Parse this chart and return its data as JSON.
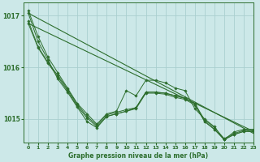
{
  "title": "Graphe pression niveau de la mer (hPa)",
  "bg_color": "#cce8e8",
  "grid_color": "#aacfcf",
  "line_color": "#2d6e2d",
  "xlim": [
    -0.5,
    23
  ],
  "ylim": [
    1014.55,
    1017.25
  ],
  "yticks": [
    1015,
    1016,
    1017
  ],
  "xticks": [
    0,
    1,
    2,
    3,
    4,
    5,
    6,
    7,
    8,
    9,
    10,
    11,
    12,
    13,
    14,
    15,
    16,
    17,
    18,
    19,
    20,
    21,
    22,
    23
  ],
  "series": [
    [
      1017.1,
      1016.6,
      1016.2,
      1015.9,
      1015.6,
      1015.3,
      1015.1,
      1014.9,
      1015.1,
      1015.15,
      1015.55,
      1015.45,
      1015.75,
      1015.75,
      1015.7,
      1015.6,
      1015.55,
      1015.2,
      1015.0,
      1014.85,
      1014.6,
      1014.75,
      1014.8,
      1014.8
    ],
    [
      1016.9,
      1016.4,
      1016.1,
      1015.85,
      1015.58,
      1015.28,
      1015.05,
      1014.88,
      1015.08,
      1015.13,
      1015.18,
      1015.22,
      1015.52,
      1015.52,
      1015.5,
      1015.45,
      1015.4,
      1015.3,
      1014.98,
      1014.83,
      1014.62,
      1014.72,
      1014.78,
      1014.78
    ],
    [
      1016.85,
      1016.38,
      1016.08,
      1015.82,
      1015.55,
      1015.25,
      1015.02,
      1014.85,
      1015.05,
      1015.1,
      1015.15,
      1015.2,
      1015.5,
      1015.5,
      1015.48,
      1015.42,
      1015.38,
      1015.27,
      1014.95,
      1014.8,
      1014.6,
      1014.7,
      1014.76,
      1014.76
    ],
    [
      1017.05,
      1016.5,
      1016.15,
      1015.78,
      1015.52,
      1015.23,
      1014.95,
      1014.83,
      1015.05,
      1015.1,
      1015.15,
      1015.22,
      1015.52,
      1015.52,
      1015.5,
      1015.45,
      1015.4,
      1015.3,
      1014.95,
      1014.8,
      1014.6,
      1014.7,
      1014.76,
      1014.76
    ]
  ],
  "straight_lines": [
    [
      [
        0,
        23
      ],
      [
        1017.05,
        1014.72
      ]
    ],
    [
      [
        0,
        23
      ],
      [
        1016.85,
        1014.76
      ]
    ]
  ]
}
